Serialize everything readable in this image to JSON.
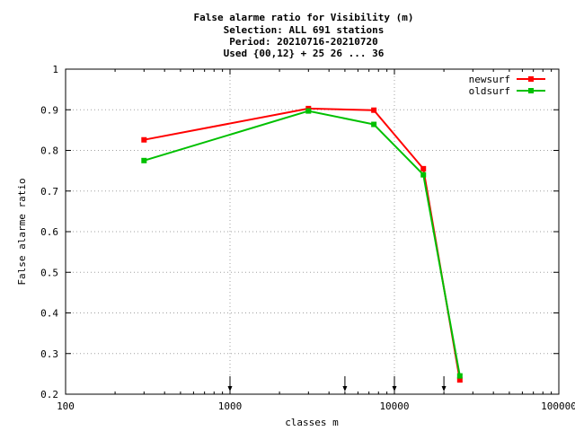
{
  "chart_data": {
    "type": "line",
    "title_lines": [
      "False alarme ratio  for Visibility (m)",
      "Selection: ALL    691 stations",
      "Period: 20210716-20210720",
      "Used {00,12} + 25 26 ... 36"
    ],
    "xlabel": "classes m",
    "ylabel": "False alarme ratio",
    "x_scale": "log",
    "xlim": [
      100,
      100000
    ],
    "ylim": [
      0.2,
      1.0
    ],
    "x_ticks": [
      100,
      1000,
      10000,
      100000
    ],
    "x_tick_labels": [
      "100",
      "1000",
      "10000",
      "100000"
    ],
    "y_ticks": [
      0.2,
      0.3,
      0.4,
      0.5,
      0.6,
      0.7,
      0.8,
      0.9,
      1.0
    ],
    "y_tick_labels": [
      "0.2",
      "0.3",
      "0.4",
      "0.5",
      "0.6",
      "0.7",
      "0.8",
      "0.9",
      "1"
    ],
    "grid": true,
    "legend_position": "top-right",
    "threshold_arrows_x": [
      1000,
      5000,
      10000,
      20000
    ],
    "series": [
      {
        "name": "newsurf",
        "color": "#ff0000",
        "x": [
          300,
          3000,
          7500,
          15000,
          25000
        ],
        "y": [
          0.826,
          0.903,
          0.899,
          0.755,
          0.235
        ]
      },
      {
        "name": "oldsurf",
        "color": "#00c000",
        "x": [
          300,
          3000,
          7500,
          15000,
          25000
        ],
        "y": [
          0.775,
          0.897,
          0.864,
          0.74,
          0.245
        ]
      }
    ]
  }
}
